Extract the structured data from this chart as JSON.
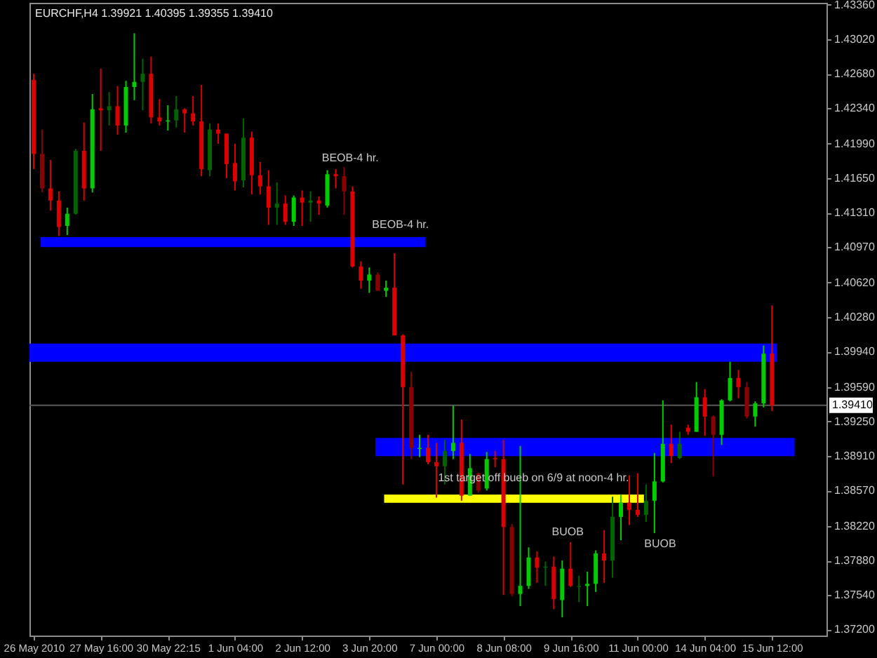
{
  "chart_data": {
    "type": "candlestick",
    "title": "EURCHF,H4  1.39921 1.40395 1.39355 1.39410",
    "categories": [
      "26 May 2010",
      null,
      null,
      null,
      null,
      null,
      null,
      null,
      "27 May 16:00",
      null,
      null,
      null,
      null,
      null,
      null,
      null,
      "30 May 22:15",
      null,
      null,
      null,
      null,
      null,
      null,
      null,
      "1 Jun 04:00",
      null,
      null,
      null,
      null,
      null,
      null,
      null,
      "2 Jun 12:00",
      null,
      null,
      null,
      null,
      null,
      null,
      null,
      "3 Jun 20:00",
      null,
      null,
      null,
      null,
      null,
      null,
      null,
      "7 Jun 00:00",
      null,
      null,
      null,
      null,
      null,
      null,
      null,
      "8 Jun 08:00",
      null,
      null,
      null,
      null,
      null,
      null,
      null,
      "9 Jun 16:00",
      null,
      null,
      null,
      null,
      null,
      null,
      null,
      "11 Jun 00:00",
      null,
      null,
      null,
      null,
      null,
      null,
      null,
      "14 Jun 04:00",
      null,
      null,
      null,
      null,
      null,
      null,
      null,
      "15 Jun 12:00",
      null,
      null,
      null,
      null,
      null,
      null
    ],
    "ohlc": [
      [
        1.4262,
        1.4268,
        1.4174,
        1.4189
      ],
      [
        1.4189,
        1.4213,
        1.4151,
        1.4155
      ],
      [
        1.4155,
        1.4183,
        1.4133,
        1.4143
      ],
      [
        1.4143,
        1.4152,
        1.4108,
        1.4117
      ],
      [
        1.4118,
        1.4136,
        1.4109,
        1.413
      ],
      [
        1.413,
        1.4194,
        1.4129,
        1.4192
      ],
      [
        1.4192,
        1.422,
        1.4143,
        1.4155
      ],
      [
        1.4155,
        1.4248,
        1.4151,
        1.4233
      ],
      [
        1.4234,
        1.4273,
        1.4192,
        1.4232
      ],
      [
        1.4232,
        1.425,
        1.4217,
        1.4236
      ],
      [
        1.4236,
        1.4256,
        1.4208,
        1.4217
      ],
      [
        1.4217,
        1.4261,
        1.421,
        1.4255
      ],
      [
        1.4255,
        1.4308,
        1.4242,
        1.426
      ],
      [
        1.426,
        1.4283,
        1.4232,
        1.4268
      ],
      [
        1.4268,
        1.4285,
        1.4219,
        1.4225
      ],
      [
        1.4225,
        1.4243,
        1.4217,
        1.4221
      ],
      [
        1.4221,
        1.4237,
        1.4212,
        1.4222
      ],
      [
        1.4222,
        1.4246,
        1.4215,
        1.4233
      ],
      [
        1.4233,
        1.4234,
        1.421,
        1.4229
      ],
      [
        1.4229,
        1.4246,
        1.4217,
        1.4221
      ],
      [
        1.4221,
        1.4257,
        1.4167,
        1.4174
      ],
      [
        1.4173,
        1.4219,
        1.4167,
        1.4213
      ],
      [
        1.4213,
        1.4219,
        1.4199,
        1.4209
      ],
      [
        1.4209,
        1.4209,
        1.4165,
        1.4179
      ],
      [
        1.418,
        1.4199,
        1.4153,
        1.4162
      ],
      [
        1.4163,
        1.4224,
        1.4156,
        1.4205
      ],
      [
        1.4205,
        1.4211,
        1.4149,
        1.4168
      ],
      [
        1.4168,
        1.4181,
        1.4149,
        1.4157
      ],
      [
        1.4157,
        1.4173,
        1.4119,
        1.4136
      ],
      [
        1.4136,
        1.4161,
        1.4119,
        1.414
      ],
      [
        1.414,
        1.4148,
        1.4119,
        1.4122
      ],
      [
        1.4122,
        1.4148,
        1.4118,
        1.4146
      ],
      [
        1.4146,
        1.4153,
        1.4118,
        1.4141
      ],
      [
        1.4141,
        1.4152,
        1.4122,
        1.4143
      ],
      [
        1.4143,
        1.4147,
        1.4129,
        1.414
      ],
      [
        1.4138,
        1.4173,
        1.4136,
        1.4169
      ],
      [
        1.4169,
        1.4174,
        1.4155,
        1.4167
      ],
      [
        1.4167,
        1.4176,
        1.4129,
        1.4152
      ],
      [
        1.4152,
        1.4157,
        1.4077,
        1.4078
      ],
      [
        1.4078,
        1.4083,
        1.4056,
        1.4064
      ],
      [
        1.4064,
        1.4077,
        1.4052,
        1.407
      ],
      [
        1.407,
        1.4072,
        1.4054,
        1.4054
      ],
      [
        1.4054,
        1.4064,
        1.4048,
        1.4057
      ],
      [
        1.4057,
        1.4091,
        1.401,
        1.401
      ],
      [
        1.401,
        1.4011,
        1.3863,
        1.3959
      ],
      [
        1.3959,
        1.3974,
        1.3888,
        1.3899
      ],
      [
        1.3898,
        1.3912,
        1.389,
        1.3899
      ],
      [
        1.3899,
        1.3912,
        1.3883,
        1.3885
      ],
      [
        1.3885,
        1.3904,
        1.385,
        1.3881
      ],
      [
        1.3881,
        1.3907,
        1.3863,
        1.3896
      ],
      [
        1.3896,
        1.3941,
        1.3888,
        1.3904
      ],
      [
        1.3904,
        1.3927,
        1.3847,
        1.3852
      ],
      [
        1.3852,
        1.3893,
        1.3852,
        1.3879
      ],
      [
        1.3874,
        1.3875,
        1.3855,
        1.3857
      ],
      [
        1.3859,
        1.3895,
        1.3857,
        1.3888
      ],
      [
        1.3889,
        1.3896,
        1.388,
        1.3888
      ],
      [
        1.3888,
        1.3907,
        1.3754,
        1.3821
      ],
      [
        1.3821,
        1.3824,
        1.3753,
        1.3755
      ],
      [
        1.3755,
        1.3901,
        1.3743,
        1.3763
      ],
      [
        1.3763,
        1.3801,
        1.376,
        1.3791
      ],
      [
        1.3791,
        1.3797,
        1.3766,
        1.3781
      ],
      [
        1.3781,
        1.3787,
        1.3763,
        1.3782
      ],
      [
        1.3782,
        1.3792,
        1.374,
        1.375
      ],
      [
        1.3749,
        1.3788,
        1.3732,
        1.378
      ],
      [
        1.378,
        1.3806,
        1.3762,
        1.3763
      ],
      [
        1.3762,
        1.3773,
        1.3747,
        1.3763
      ],
      [
        1.3763,
        1.3777,
        1.3743,
        1.3765
      ],
      [
        1.3765,
        1.3798,
        1.3757,
        1.3795
      ],
      [
        1.3795,
        1.3818,
        1.3766,
        1.3788
      ],
      [
        1.3788,
        1.3851,
        1.3771,
        1.3831
      ],
      [
        1.3831,
        1.3853,
        1.3808,
        1.3845
      ],
      [
        1.3845,
        1.3872,
        1.3823,
        1.3838
      ],
      [
        1.3838,
        1.3874,
        1.3831,
        1.3833
      ],
      [
        1.3833,
        1.3863,
        1.3826,
        1.3847
      ],
      [
        1.3847,
        1.3894,
        1.3815,
        1.3866
      ],
      [
        1.3866,
        1.3946,
        1.3865,
        1.3903
      ],
      [
        1.3903,
        1.3922,
        1.3884,
        1.3891
      ],
      [
        1.3889,
        1.3915,
        1.3888,
        1.3903
      ],
      [
        1.3919,
        1.3922,
        1.3912,
        1.3915
      ],
      [
        1.3915,
        1.3964,
        1.3915,
        1.3949
      ],
      [
        1.3949,
        1.3957,
        1.3911,
        1.393
      ],
      [
        1.393,
        1.3931,
        1.3871,
        1.3912
      ],
      [
        1.3912,
        1.3947,
        1.3902,
        1.3946
      ],
      [
        1.3946,
        1.3984,
        1.3945,
        1.3968
      ],
      [
        1.3968,
        1.3976,
        1.3948,
        1.3959
      ],
      [
        1.3959,
        1.3964,
        1.3928,
        1.393
      ],
      [
        1.393,
        1.3945,
        1.392,
        1.3943
      ],
      [
        1.3943,
        1.4,
        1.3939,
        1.3992
      ],
      [
        1.39921,
        1.40395,
        1.39355,
        1.3941
      ],
      null,
      null,
      null,
      null,
      null,
      null
    ],
    "colors": [
      "#dd0000",
      "#8b0000",
      "#dd0000",
      "#dd0000",
      "#00cc00",
      "#006400",
      "#dd0000",
      "#00cc00",
      "#dd0000",
      "#006400",
      "#dd0000",
      "#00cc00",
      "#00cc00",
      "#006400",
      "#dd0000",
      "#dd0000",
      "#00cc00",
      "#006400",
      "#dd0000",
      "#dd0000",
      "#dd0000",
      "#006400",
      "#dd0000",
      "#dd0000",
      "#dd0000",
      "#006400",
      "#dd0000",
      "#dd0000",
      "#dd0000",
      "#006400",
      "#dd0000",
      "#00cc00",
      "#dd0000",
      "#006400",
      "#dd0000",
      "#00cc00",
      "#dd0000",
      "#8b0000",
      "#dd0000",
      "#dd0000",
      "#00cc00",
      "#8b0000",
      "#00cc00",
      "#dd0000",
      "#dd0000",
      "#8b0000",
      "#00cc00",
      "#dd0000",
      "#dd0000",
      "#006400",
      "#00cc00",
      "#dd0000",
      "#00cc00",
      "#8b0000",
      "#00cc00",
      "#dd0000",
      "#dd0000",
      "#8b0000",
      "#00cc00",
      "#00cc00",
      "#dd0000",
      "#006400",
      "#dd0000",
      "#00cc00",
      "#dd0000",
      "#006400",
      "#00cc00",
      "#00cc00",
      "#dd0000",
      "#006400",
      "#00cc00",
      "#dd0000",
      "#dd0000",
      "#006400",
      "#00cc00",
      "#00cc00",
      "#dd0000",
      "#006400",
      "#dd0000",
      "#00cc00",
      "#dd0000",
      "#8b0000",
      "#00cc00",
      "#00cc00",
      "#dd0000",
      "#8b0000",
      "#00cc00",
      "#00cc00",
      "#dd0000",
      null,
      null,
      null,
      null,
      null,
      null
    ],
    "bands": [
      {
        "axis": "y",
        "from": 1.4097,
        "to": 1.4107,
        "color": "#0000ff"
      },
      {
        "axis": "y",
        "from": 1.3984,
        "to": 1.4002,
        "color": "#0000ff"
      },
      {
        "axis": "y",
        "from": 1.3891,
        "to": 1.3909,
        "color": "#0000ff"
      },
      {
        "axis": "y",
        "from": 1.3845,
        "to": 1.3853,
        "color": "#ffff00"
      }
    ],
    "ref_lines": [
      {
        "axis": "y",
        "value": 1.3941,
        "label": "1.39410",
        "color": "#5a5a5a"
      }
    ],
    "annotations": [
      "BEOB-4 hr.",
      "BEOB-4 hr.",
      "1st target off bueb on 6/9 at noon-4 hr.",
      "BUOB",
      "BUOB"
    ],
    "ylim": [
      1.3714,
      1.4338
    ],
    "yticks": [
      {
        "value": 1.4336,
        "label": "1.43360"
      },
      {
        "value": 1.4302,
        "label": "1.43020"
      },
      {
        "value": 1.4268,
        "label": "1.42680"
      },
      {
        "value": 1.4234,
        "label": "1.42340"
      },
      {
        "value": 1.4199,
        "label": "1.41990"
      },
      {
        "value": 1.4165,
        "label": "1.41650"
      },
      {
        "value": 1.4131,
        "label": "1.41310"
      },
      {
        "value": 1.4097,
        "label": "1.40970"
      },
      {
        "value": 1.4062,
        "label": "1.40620"
      },
      {
        "value": 1.4028,
        "label": "1.40280"
      },
      {
        "value": 1.3994,
        "label": "1.39940"
      },
      {
        "value": 1.3959,
        "label": "1.39590"
      },
      {
        "value": 1.3925,
        "label": "1.39250"
      },
      {
        "value": 1.3891,
        "label": "1.38910"
      },
      {
        "value": 1.3857,
        "label": "1.38570"
      },
      {
        "value": 1.3822,
        "label": "1.38220"
      },
      {
        "value": 1.3788,
        "label": "1.37880"
      },
      {
        "value": 1.3754,
        "label": "1.37540"
      },
      {
        "value": 1.372,
        "label": "1.37200"
      }
    ]
  }
}
